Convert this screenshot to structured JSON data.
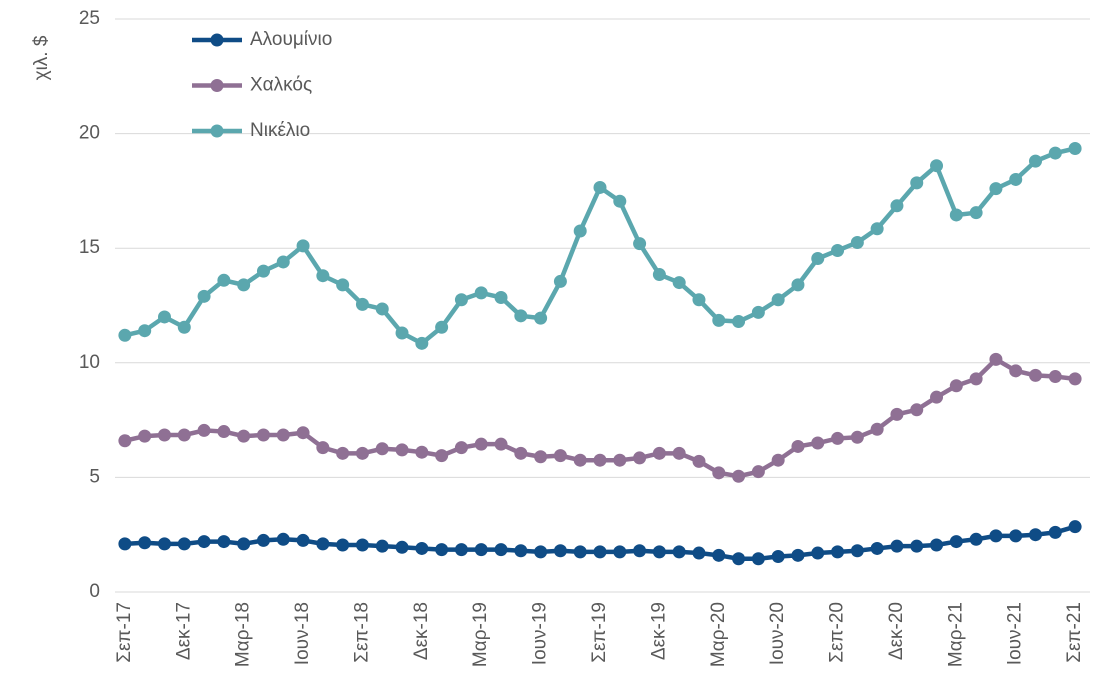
{
  "chart_data": {
    "type": "line",
    "y_axis_label": "χιλ. $",
    "categories": [
      "Σεπ-17",
      null,
      null,
      "Δεκ-17",
      null,
      null,
      "Μαρ-18",
      null,
      null,
      "Ιουν-18",
      null,
      null,
      "Σεπ-18",
      null,
      null,
      "Δεκ-18",
      null,
      null,
      "Μαρ-19",
      null,
      null,
      "Ιουν-19",
      null,
      null,
      "Σεπ-19",
      null,
      null,
      "Δεκ-19",
      null,
      null,
      "Μαρ-20",
      null,
      null,
      "Ιουν-20",
      null,
      null,
      "Σεπ-20",
      null,
      null,
      "Δεκ-20",
      null,
      null,
      "Μαρ-21",
      null,
      null,
      "Ιουν-21",
      null,
      null,
      "Σεπ-21"
    ],
    "series": [
      {
        "name": "Αλουμίνιο",
        "color": "#0f4c86",
        "values": [
          2.1,
          2.15,
          2.1,
          2.1,
          2.2,
          2.2,
          2.1,
          2.25,
          2.3,
          2.25,
          2.1,
          2.05,
          2.05,
          2.0,
          1.95,
          1.9,
          1.85,
          1.85,
          1.85,
          1.85,
          1.8,
          1.75,
          1.8,
          1.75,
          1.75,
          1.75,
          1.8,
          1.75,
          1.75,
          1.7,
          1.6,
          1.45,
          1.45,
          1.55,
          1.6,
          1.7,
          1.75,
          1.8,
          1.9,
          2.0,
          2.0,
          2.05,
          2.2,
          2.3,
          2.45,
          2.45,
          2.5,
          2.6,
          2.85
        ]
      },
      {
        "name": "Χαλκός",
        "color": "#8f7094",
        "values": [
          6.6,
          6.8,
          6.85,
          6.85,
          7.05,
          7.0,
          6.8,
          6.85,
          6.85,
          6.95,
          6.3,
          6.05,
          6.05,
          6.25,
          6.2,
          6.1,
          5.95,
          6.3,
          6.45,
          6.45,
          6.05,
          5.9,
          5.95,
          5.75,
          5.75,
          5.75,
          5.85,
          6.05,
          6.05,
          5.7,
          5.2,
          5.05,
          5.25,
          5.75,
          6.35,
          6.5,
          6.7,
          6.75,
          7.1,
          7.75,
          7.95,
          8.5,
          9.0,
          9.3,
          10.15,
          9.65,
          9.45,
          9.4,
          9.3
        ]
      },
      {
        "name": "Νικέλιο",
        "color": "#5ba7ae",
        "values": [
          11.2,
          11.4,
          12.0,
          11.55,
          12.9,
          13.6,
          13.4,
          14.0,
          14.4,
          15.1,
          13.8,
          13.4,
          12.55,
          12.35,
          11.3,
          10.85,
          11.55,
          12.75,
          13.05,
          12.85,
          12.05,
          11.95,
          13.55,
          15.75,
          17.65,
          17.05,
          15.2,
          13.85,
          13.5,
          12.75,
          11.85,
          11.8,
          12.2,
          12.75,
          13.4,
          14.55,
          14.9,
          15.25,
          15.85,
          16.85,
          17.85,
          18.6,
          16.45,
          16.55,
          17.6,
          18.0,
          18.8,
          19.15,
          19.35
        ]
      }
    ],
    "ylim": [
      0,
      25
    ],
    "yticks": [
      0,
      5,
      10,
      15,
      20,
      25
    ],
    "grid": true,
    "legend": "top-left"
  }
}
